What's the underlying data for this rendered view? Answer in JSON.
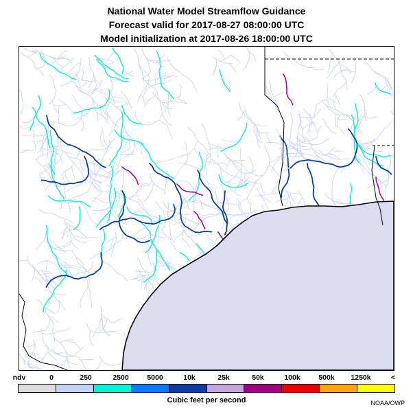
{
  "title": {
    "line1": "National Water Model Streamflow Guidance",
    "line2": "Forecast valid for 2017-08-27 08:00:00 UTC",
    "line3": "Model initialization at 2017-08-26 18:00:00 UTC"
  },
  "legend": {
    "labels": [
      "ndv",
      "0",
      "250",
      "2500",
      "5000",
      "10k",
      "25k",
      "50k",
      "100k",
      "500k",
      "1250k",
      "<"
    ],
    "colors": [
      "#dcdcdc",
      "#c4d2f5",
      "#00f5d6",
      "#007afe",
      "#0a3ea5",
      "#c8a2dc",
      "#a00080",
      "#ee0000",
      "#ffa500",
      "#ffff00"
    ],
    "units": "Cubic feet per second",
    "credit": "NOAA/OWP"
  },
  "map": {
    "ocean_color": "#dcdcf0",
    "coast_color": "#000000",
    "state_border_color": "#000000",
    "river_class_colors": {
      "low": "#c4d2f5",
      "mid": "#00f5d6",
      "high": "#0a3ea5",
      "very_high": "#b000b0"
    }
  }
}
